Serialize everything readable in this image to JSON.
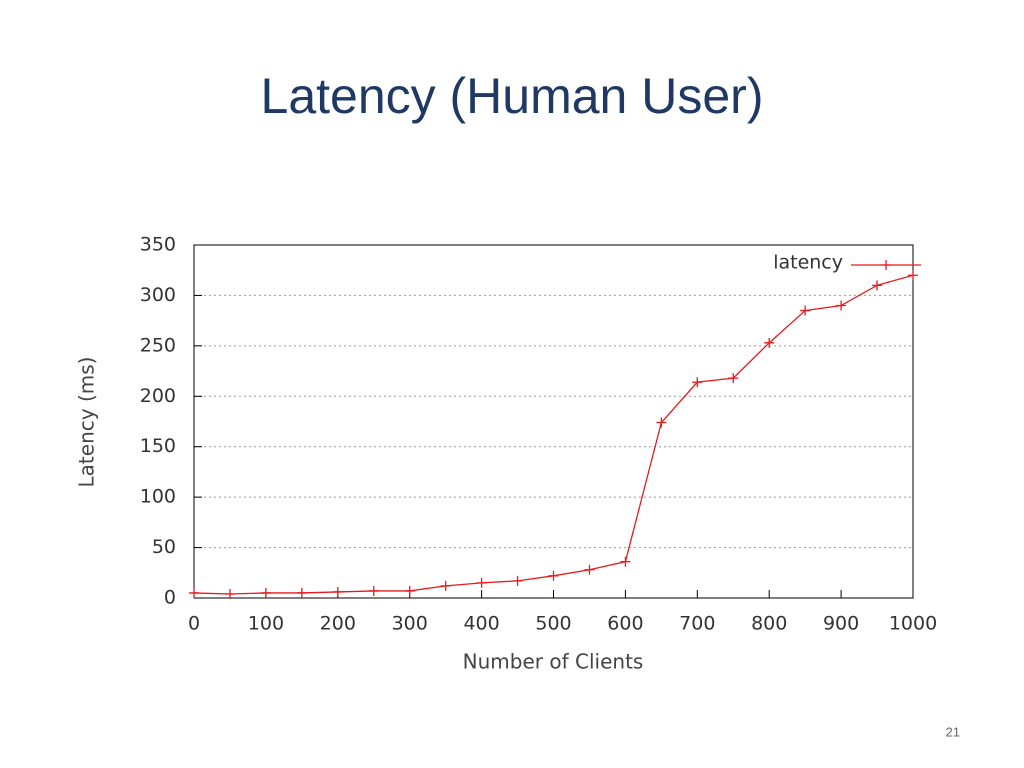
{
  "chart_data": {
    "type": "line",
    "title": "Latency (Human User)",
    "x_label": "Number of Clients",
    "y_label": "Latency (ms)",
    "x": [
      0,
      50,
      100,
      150,
      200,
      250,
      300,
      350,
      400,
      450,
      500,
      550,
      600,
      650,
      700,
      750,
      800,
      850,
      900,
      950,
      1000
    ],
    "series": [
      {
        "name": "latency",
        "color": "#e8191c",
        "values": [
          5,
          4,
          5,
          5,
          6,
          7,
          7,
          12,
          15,
          17,
          22,
          28,
          36,
          174,
          214,
          218,
          253,
          285,
          290,
          310,
          320
        ]
      }
    ],
    "xlim": [
      0,
      1000
    ],
    "xticks": [
      0,
      100,
      200,
      300,
      400,
      500,
      600,
      700,
      800,
      900,
      1000
    ],
    "ylim": [
      0,
      350
    ],
    "yticks": [
      0,
      50,
      100,
      150,
      200,
      250,
      300,
      350
    ],
    "grid": true,
    "legend": "top-right"
  },
  "page_number": "21"
}
